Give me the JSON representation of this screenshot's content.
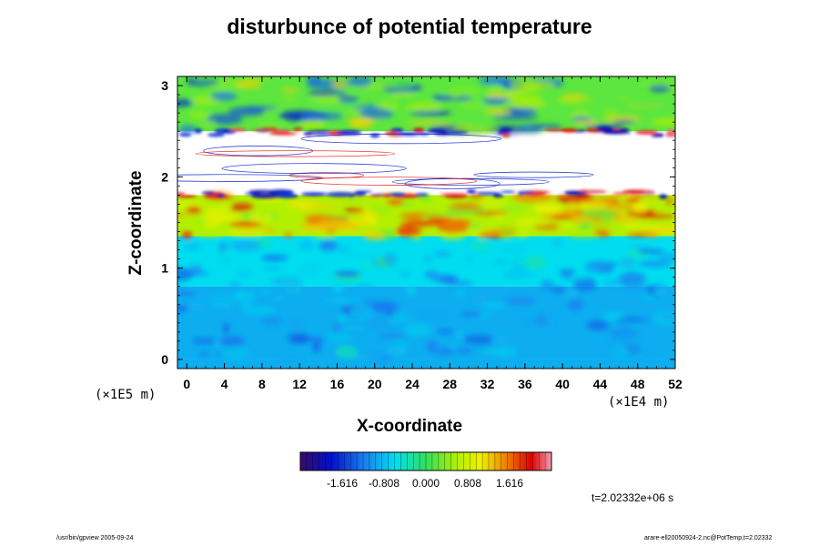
{
  "chart_data": {
    "type": "heatmap",
    "title": "disturbunce of potential temperature",
    "xlabel": "X-coordinate",
    "ylabel": "Z-coordinate",
    "x_unit": "(×1E4 m)",
    "y_unit": "(×1E5 m)",
    "xlim": [
      -1,
      52
    ],
    "ylim": [
      -0.1,
      3.1
    ],
    "x_ticks": [
      "0",
      "4",
      "8",
      "12",
      "16",
      "20",
      "24",
      "28",
      "32",
      "36",
      "40",
      "44",
      "48",
      "52"
    ],
    "y_ticks": [
      "0",
      "1",
      "2",
      "3"
    ],
    "colorbar": {
      "range": [
        -2.424,
        2.424
      ],
      "tick_labels": [
        "-1.616",
        "-0.808",
        "0.000",
        "0.808",
        "1.616"
      ],
      "tick_values": [
        -1.616,
        -0.808,
        0.0,
        0.808,
        1.616
      ]
    },
    "field_layers": [
      {
        "z_range": [
          0.0,
          0.8
        ],
        "value": -0.9,
        "description_level": "light-blue"
      },
      {
        "z_range": [
          0.8,
          1.35
        ],
        "value": -0.6,
        "description_level": "cyan-blue"
      },
      {
        "z_range": [
          1.35,
          1.8
        ],
        "value": 0.6,
        "description_level": "green-yellow-red"
      },
      {
        "z_range": [
          1.8,
          2.5
        ],
        "value": null,
        "description_level": "out-of-range"
      },
      {
        "z_range": [
          2.5,
          3.1
        ],
        "value": 0.2,
        "description_level": "green"
      }
    ],
    "time_label": "t=2.02332e+06 s"
  },
  "footer": {
    "left": "/usr/bin/gpview 2005-09-24",
    "right": "arare-ell20050924-2.nc@PotTemp,t=2.02332"
  }
}
